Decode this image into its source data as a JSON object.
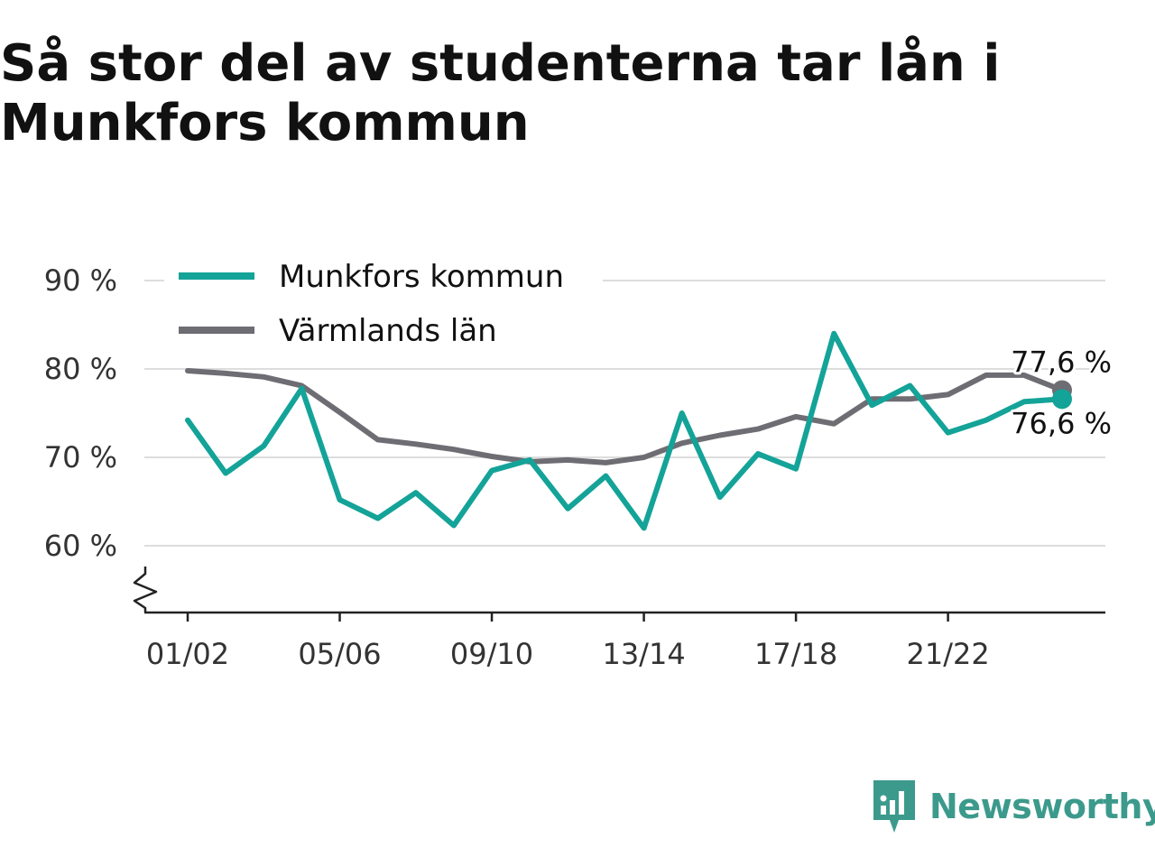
{
  "title": "Så stor del av studenterna tar lån i Munkfors kommun",
  "brand": {
    "name": "Newsworthy",
    "icon": "newsworthy-logo-icon",
    "color": "#3c9a8c"
  },
  "chart_data": {
    "type": "line",
    "title": "Så stor del av studenterna tar lån i Munkfors kommun",
    "xlabel": "",
    "ylabel": "",
    "x": [
      "01/02",
      "02/03",
      "03/04",
      "04/05",
      "05/06",
      "06/07",
      "07/08",
      "08/09",
      "09/10",
      "10/11",
      "11/12",
      "12/13",
      "13/14",
      "14/15",
      "15/16",
      "16/17",
      "17/18",
      "18/19",
      "19/20",
      "20/21",
      "21/22",
      "22/23",
      "23/24",
      "24/25"
    ],
    "x_tick_labels": [
      "01/02",
      "05/06",
      "09/10",
      "13/14",
      "17/18",
      "21/22"
    ],
    "y_ticks": [
      60,
      70,
      80,
      90
    ],
    "y_tick_labels": [
      "60 %",
      "70 %",
      "80 %",
      "90 %"
    ],
    "ylim": [
      53,
      91
    ],
    "y_axis_break": true,
    "grid": true,
    "legend_position": "top-left",
    "series": [
      {
        "name": "Munkfors kommun",
        "color": "#14a398",
        "values": [
          74.2,
          68.2,
          71.3,
          77.8,
          65.2,
          63.1,
          66.0,
          62.3,
          68.5,
          69.7,
          64.2,
          67.9,
          62.0,
          75.0,
          65.5,
          70.4,
          68.7,
          84.0,
          75.9,
          78.1,
          72.8,
          74.2,
          76.3,
          76.6
        ],
        "end_label": "76,6 %"
      },
      {
        "name": "Värmlands län",
        "color": "#6e6d73",
        "values": [
          79.8,
          79.5,
          79.1,
          78.1,
          75.1,
          72.0,
          71.5,
          70.9,
          70.1,
          69.5,
          69.7,
          69.4,
          70.0,
          71.6,
          72.5,
          73.2,
          74.6,
          73.8,
          76.6,
          76.6,
          77.1,
          79.3,
          79.3,
          77.6
        ],
        "end_label": "77,6 %"
      }
    ]
  }
}
